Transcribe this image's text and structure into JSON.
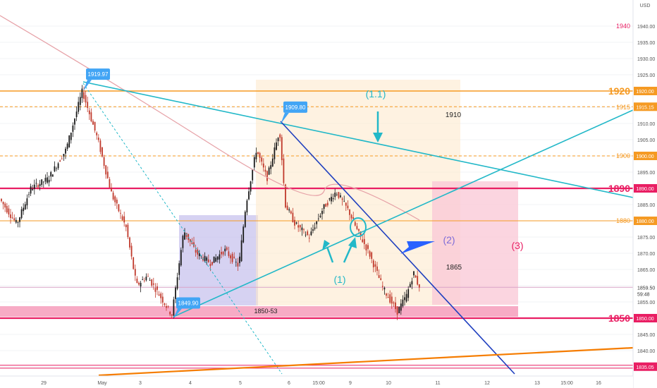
{
  "chart_data": {
    "type": "candlestick",
    "currency": "USD",
    "y_axis": {
      "min": 1832,
      "max": 1944,
      "ticks": [
        1835,
        1840,
        1845,
        1850,
        1855,
        1860,
        1865,
        1870,
        1875,
        1880,
        1885,
        1890,
        1895,
        1900,
        1905,
        1910,
        1915,
        1920,
        1925,
        1930,
        1935,
        1940
      ],
      "tick_labels": [
        "1835.00",
        "1840.00",
        "1845.00",
        "1850.00",
        "1855.00",
        "1860.00",
        "1865.00",
        "1870.00",
        "1875.00",
        "1880.00",
        "1885.00",
        "1890.00",
        "1895.00",
        "1900.00",
        "1905.00",
        "1910.00",
        "1915.00",
        "1920.00",
        "1925.00",
        "1930.00",
        "1935.00",
        "1940.00"
      ]
    },
    "x_axis": {
      "tick_labels": [
        "29",
        "May",
        "3",
        "4",
        "5",
        "6",
        "15:00",
        "9",
        "10",
        "11",
        "12",
        "13",
        "15:00",
        "16"
      ]
    },
    "last_price": 1859.5,
    "countdown": "59:48",
    "price_tags": [
      {
        "value": 1920,
        "label": "1920.00",
        "color": "#f59a23"
      },
      {
        "value": 1915.15,
        "label": "1915.15",
        "color": "#f59a23"
      },
      {
        "value": 1900,
        "label": "1900.00",
        "color": "#f59a23"
      },
      {
        "value": 1890,
        "label": "1890.00",
        "color": "#e91e63"
      },
      {
        "value": 1880,
        "label": "1880.00",
        "color": "#f59a23"
      },
      {
        "value": 1850,
        "label": "1850.00",
        "color": "#e91e63"
      },
      {
        "value": 1835.05,
        "label": "1835.05",
        "color": "#e91e63"
      }
    ],
    "level_labels": [
      {
        "text": "1940",
        "value": 1940,
        "color": "#e91e63"
      },
      {
        "text": "1920",
        "value": 1920,
        "color": "#f59a23"
      },
      {
        "text": "1915",
        "value": 1915,
        "color": "#f59a23"
      },
      {
        "text": "1900",
        "value": 1900,
        "color": "#f59a23"
      },
      {
        "text": "1890",
        "value": 1890,
        "color": "#e91e63"
      },
      {
        "text": "1880",
        "value": 1880,
        "color": "#f59a23"
      },
      {
        "text": "1850",
        "value": 1850,
        "color": "#e91e63"
      }
    ],
    "peak_labels": [
      {
        "text": "1919.97",
        "value": 1919.97
      },
      {
        "text": "1909.80",
        "value": 1909.8
      },
      {
        "text": "1849.90",
        "value": 1849.9
      }
    ],
    "annotations": [
      "(1.1)",
      "1910",
      "(2)",
      "(3)",
      "1865",
      "(1)",
      "1850-53"
    ],
    "colors": {
      "up": "#26a69a",
      "down": "#ef5350",
      "orange_level": "#f59a23",
      "magenta_level": "#e91e63",
      "teal_line": "#22b8c8",
      "blue_line": "#1f3fbf",
      "purple_box": "#c8c3ee",
      "peach_box": "#fde7c9",
      "pink_box": "#f9c7d6"
    }
  }
}
